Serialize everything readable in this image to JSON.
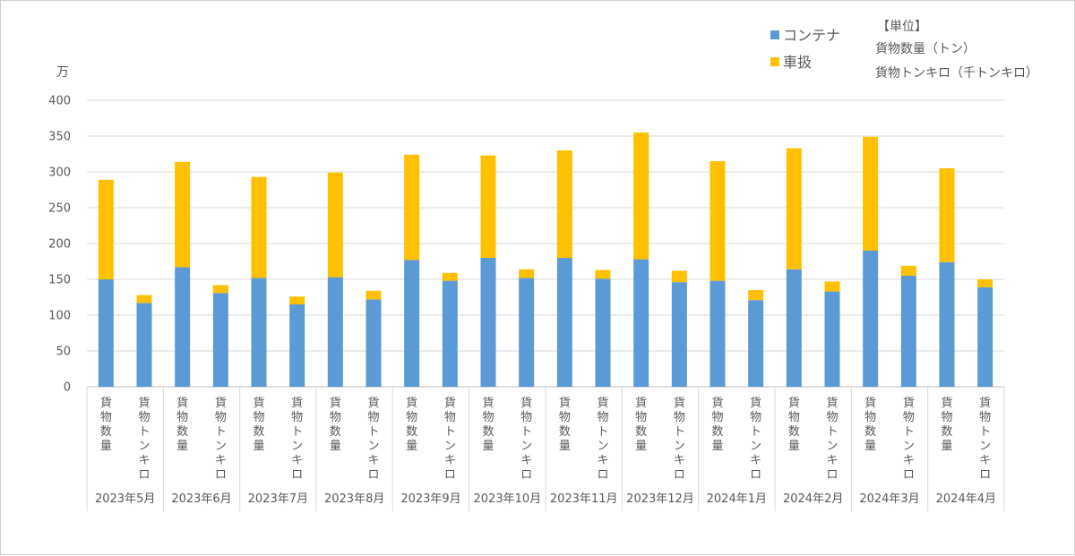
{
  "chart_data": {
    "type": "bar",
    "stacked": true,
    "y_unit_label": "万",
    "ylim": [
      0,
      400
    ],
    "y_ticks": [
      0,
      50,
      100,
      150,
      200,
      250,
      300,
      350,
      400
    ],
    "grid": true,
    "legend_position": "top-right",
    "groups": [
      "2023年5月",
      "2023年6月",
      "2023年7月",
      "2023年8月",
      "2023年9月",
      "2023年10月",
      "2023年11月",
      "2023年12月",
      "2024年1月",
      "2024年2月",
      "2024年3月",
      "2024年4月"
    ],
    "sub_categories": [
      "貨物数量",
      "貨物トンキロ"
    ],
    "series": [
      {
        "name": "コンテナ",
        "color": "#5b9bd5",
        "values": [
          [
            150,
            117
          ],
          [
            167,
            131
          ],
          [
            152,
            115
          ],
          [
            153,
            122
          ],
          [
            177,
            148
          ],
          [
            180,
            152
          ],
          [
            180,
            151
          ],
          [
            178,
            146
          ],
          [
            148,
            121
          ],
          [
            164,
            133
          ],
          [
            190,
            155
          ],
          [
            174,
            139
          ]
        ]
      },
      {
        "name": "車扱",
        "color": "#ffc000",
        "values": [
          [
            139,
            11
          ],
          [
            147,
            11
          ],
          [
            141,
            11
          ],
          [
            146,
            12
          ],
          [
            147,
            11
          ],
          [
            143,
            12
          ],
          [
            150,
            12
          ],
          [
            177,
            16
          ],
          [
            167,
            14
          ],
          [
            169,
            14
          ],
          [
            159,
            14
          ],
          [
            131,
            11
          ]
        ]
      }
    ],
    "unit_note": {
      "title": "【単位】",
      "lines": [
        "貨物数量（トン）",
        "貨物トンキロ（千トンキロ）"
      ]
    }
  }
}
